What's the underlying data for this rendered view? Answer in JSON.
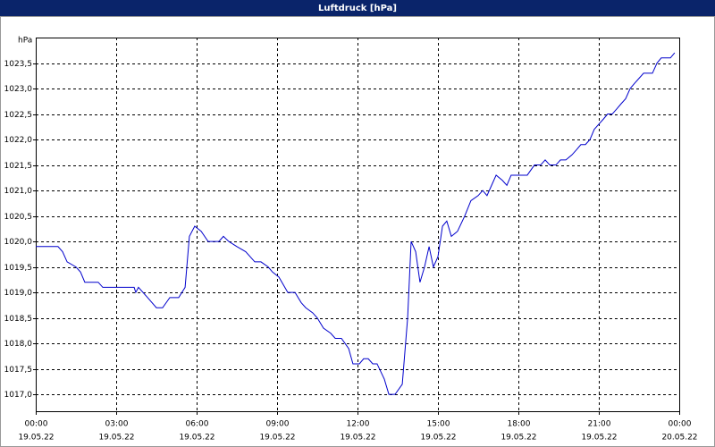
{
  "chart_data": {
    "type": "line",
    "title": "Luftdruck [hPa]",
    "y_unit_label": "hPa",
    "x": [
      0,
      0.83,
      1.0,
      1.17,
      1.5,
      1.67,
      1.83,
      2.33,
      2.5,
      3.67,
      3.73,
      3.83,
      4.17,
      4.5,
      4.73,
      5.0,
      5.33,
      5.57,
      5.73,
      5.93,
      6.17,
      6.43,
      6.83,
      7.0,
      7.2,
      7.5,
      7.83,
      8.17,
      8.4,
      8.67,
      8.83,
      9.07,
      9.4,
      9.67,
      9.9,
      10.07,
      10.33,
      10.5,
      10.73,
      11.0,
      11.17,
      11.4,
      11.67,
      11.83,
      12.07,
      12.23,
      12.4,
      12.57,
      12.73,
      13.0,
      13.17,
      13.4,
      13.67,
      13.87,
      14.0,
      14.17,
      14.33,
      14.5,
      14.67,
      14.83,
      15.0,
      15.17,
      15.33,
      15.5,
      15.73,
      16.0,
      16.23,
      16.5,
      16.67,
      16.83,
      17.0,
      17.17,
      17.4,
      17.57,
      17.73,
      18.33,
      18.6,
      18.83,
      19.0,
      19.17,
      19.4,
      19.57,
      19.77,
      20.0,
      20.17,
      20.33,
      20.5,
      20.67,
      20.83,
      21.0,
      21.17,
      21.33,
      21.5,
      21.67,
      21.83,
      22.0,
      22.17,
      22.33,
      22.5,
      22.67,
      23.0,
      23.17,
      23.33,
      23.67,
      23.83
    ],
    "series": [
      {
        "name": "Luftdruck",
        "color": "#0000cc",
        "values": [
          1019.9,
          1019.9,
          1019.8,
          1019.6,
          1019.5,
          1019.4,
          1019.2,
          1019.2,
          1019.1,
          1019.1,
          1019.0,
          1019.1,
          1018.9,
          1018.7,
          1018.7,
          1018.9,
          1018.9,
          1019.1,
          1020.1,
          1020.3,
          1020.2,
          1020.0,
          1020.0,
          1020.1,
          1020.0,
          1019.9,
          1019.8,
          1019.6,
          1019.6,
          1019.5,
          1019.4,
          1019.3,
          1019.0,
          1019.0,
          1018.8,
          1018.7,
          1018.6,
          1018.5,
          1018.3,
          1018.2,
          1018.1,
          1018.1,
          1017.9,
          1017.6,
          1017.6,
          1017.7,
          1017.7,
          1017.6,
          1017.6,
          1017.3,
          1017.0,
          1017.0,
          1017.2,
          1018.5,
          1020.0,
          1019.8,
          1019.2,
          1019.5,
          1019.9,
          1019.5,
          1019.7,
          1020.3,
          1020.4,
          1020.1,
          1020.2,
          1020.5,
          1020.8,
          1020.9,
          1021.0,
          1020.9,
          1021.1,
          1021.3,
          1021.2,
          1021.1,
          1021.3,
          1021.3,
          1021.5,
          1021.5,
          1021.6,
          1021.5,
          1021.5,
          1021.6,
          1021.6,
          1021.7,
          1021.8,
          1021.9,
          1021.9,
          1022.0,
          1022.2,
          1022.3,
          1022.4,
          1022.5,
          1022.5,
          1022.6,
          1022.7,
          1022.8,
          1023.0,
          1023.1,
          1023.2,
          1023.3,
          1023.3,
          1023.5,
          1023.6,
          1023.6,
          1023.7
        ]
      }
    ],
    "xlim": [
      0,
      24
    ],
    "xticks": [
      {
        "value": 0,
        "label": "00:00"
      },
      {
        "value": 3,
        "label": "03:00"
      },
      {
        "value": 6,
        "label": "06:00"
      },
      {
        "value": 9,
        "label": "09:00"
      },
      {
        "value": 12,
        "label": "12:00"
      },
      {
        "value": 15,
        "label": "15:00"
      },
      {
        "value": 18,
        "label": "18:00"
      },
      {
        "value": 21,
        "label": "21:00"
      },
      {
        "value": 24,
        "label": "00:00"
      }
    ],
    "xtick_dates": [
      "19.05.22",
      "19.05.22",
      "19.05.22",
      "19.05.22",
      "19.05.22",
      "19.05.22",
      "19.05.22",
      "19.05.22",
      "20.05.22"
    ],
    "ylim": [
      1016.67,
      1024.0
    ],
    "yticks": [
      {
        "value": 1017,
        "label": "1017,0"
      },
      {
        "value": 1017.5,
        "label": "1017,5"
      },
      {
        "value": 1018,
        "label": "1018,0"
      },
      {
        "value": 1018.5,
        "label": "1018,5"
      },
      {
        "value": 1019,
        "label": "1019,0"
      },
      {
        "value": 1019.5,
        "label": "1019,5"
      },
      {
        "value": 1020,
        "label": "1020,0"
      },
      {
        "value": 1020.5,
        "label": "1020,5"
      },
      {
        "value": 1021,
        "label": "1021,0"
      },
      {
        "value": 1021.5,
        "label": "1021,5"
      },
      {
        "value": 1022,
        "label": "1022,0"
      },
      {
        "value": 1022.5,
        "label": "1022,5"
      },
      {
        "value": 1023,
        "label": "1023,0"
      },
      {
        "value": 1023.5,
        "label": "1023,5"
      }
    ],
    "grid": true
  }
}
